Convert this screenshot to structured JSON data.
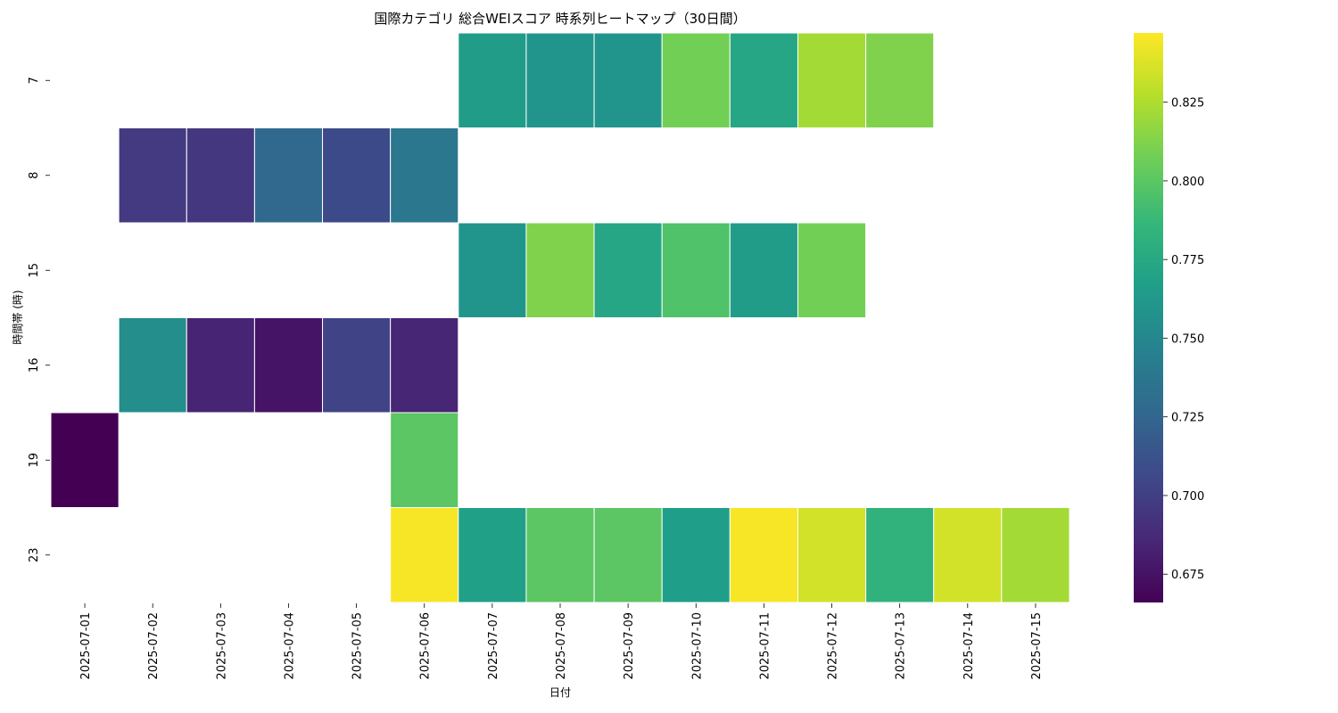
{
  "chart_data": {
    "type": "heatmap",
    "title": "国際カテゴリ 総合WEIスコア 時系列ヒートマップ（30日間）",
    "xlabel": "日付",
    "ylabel": "時間帯 (時)",
    "x": [
      "2025-07-01",
      "2025-07-02",
      "2025-07-03",
      "2025-07-04",
      "2025-07-05",
      "2025-07-06",
      "2025-07-07",
      "2025-07-08",
      "2025-07-09",
      "2025-07-10",
      "2025-07-11",
      "2025-07-12",
      "2025-07-13",
      "2025-07-14",
      "2025-07-15"
    ],
    "y": [
      "7",
      "8",
      "15",
      "16",
      "19",
      "23"
    ],
    "values": [
      [
        null,
        null,
        null,
        null,
        null,
        null,
        0.765,
        0.76,
        0.76,
        0.808,
        0.773,
        0.822,
        0.812,
        null,
        null
      ],
      [
        null,
        0.697,
        0.695,
        0.727,
        0.707,
        0.738,
        null,
        null,
        null,
        null,
        null,
        null,
        null,
        null,
        null
      ],
      [
        null,
        null,
        null,
        null,
        null,
        null,
        0.76,
        0.812,
        0.773,
        0.796,
        0.765,
        0.808,
        null,
        null,
        null
      ],
      [
        null,
        0.755,
        0.684,
        0.676,
        0.703,
        0.685,
        null,
        null,
        null,
        null,
        null,
        null,
        null,
        null,
        null
      ],
      [
        0.666,
        null,
        null,
        null,
        null,
        0.8,
        null,
        null,
        null,
        null,
        null,
        null,
        null,
        null,
        null
      ],
      [
        null,
        null,
        null,
        null,
        null,
        0.845,
        0.768,
        0.8,
        0.8,
        0.767,
        0.845,
        0.835,
        0.783,
        0.835,
        0.822
      ]
    ],
    "colormap": "viridis",
    "colorbar": {
      "vmin": 0.666,
      "vmax": 0.847,
      "ticks": [
        "0.675",
        "0.700",
        "0.725",
        "0.750",
        "0.775",
        "0.800",
        "0.825"
      ]
    },
    "grid": false
  }
}
